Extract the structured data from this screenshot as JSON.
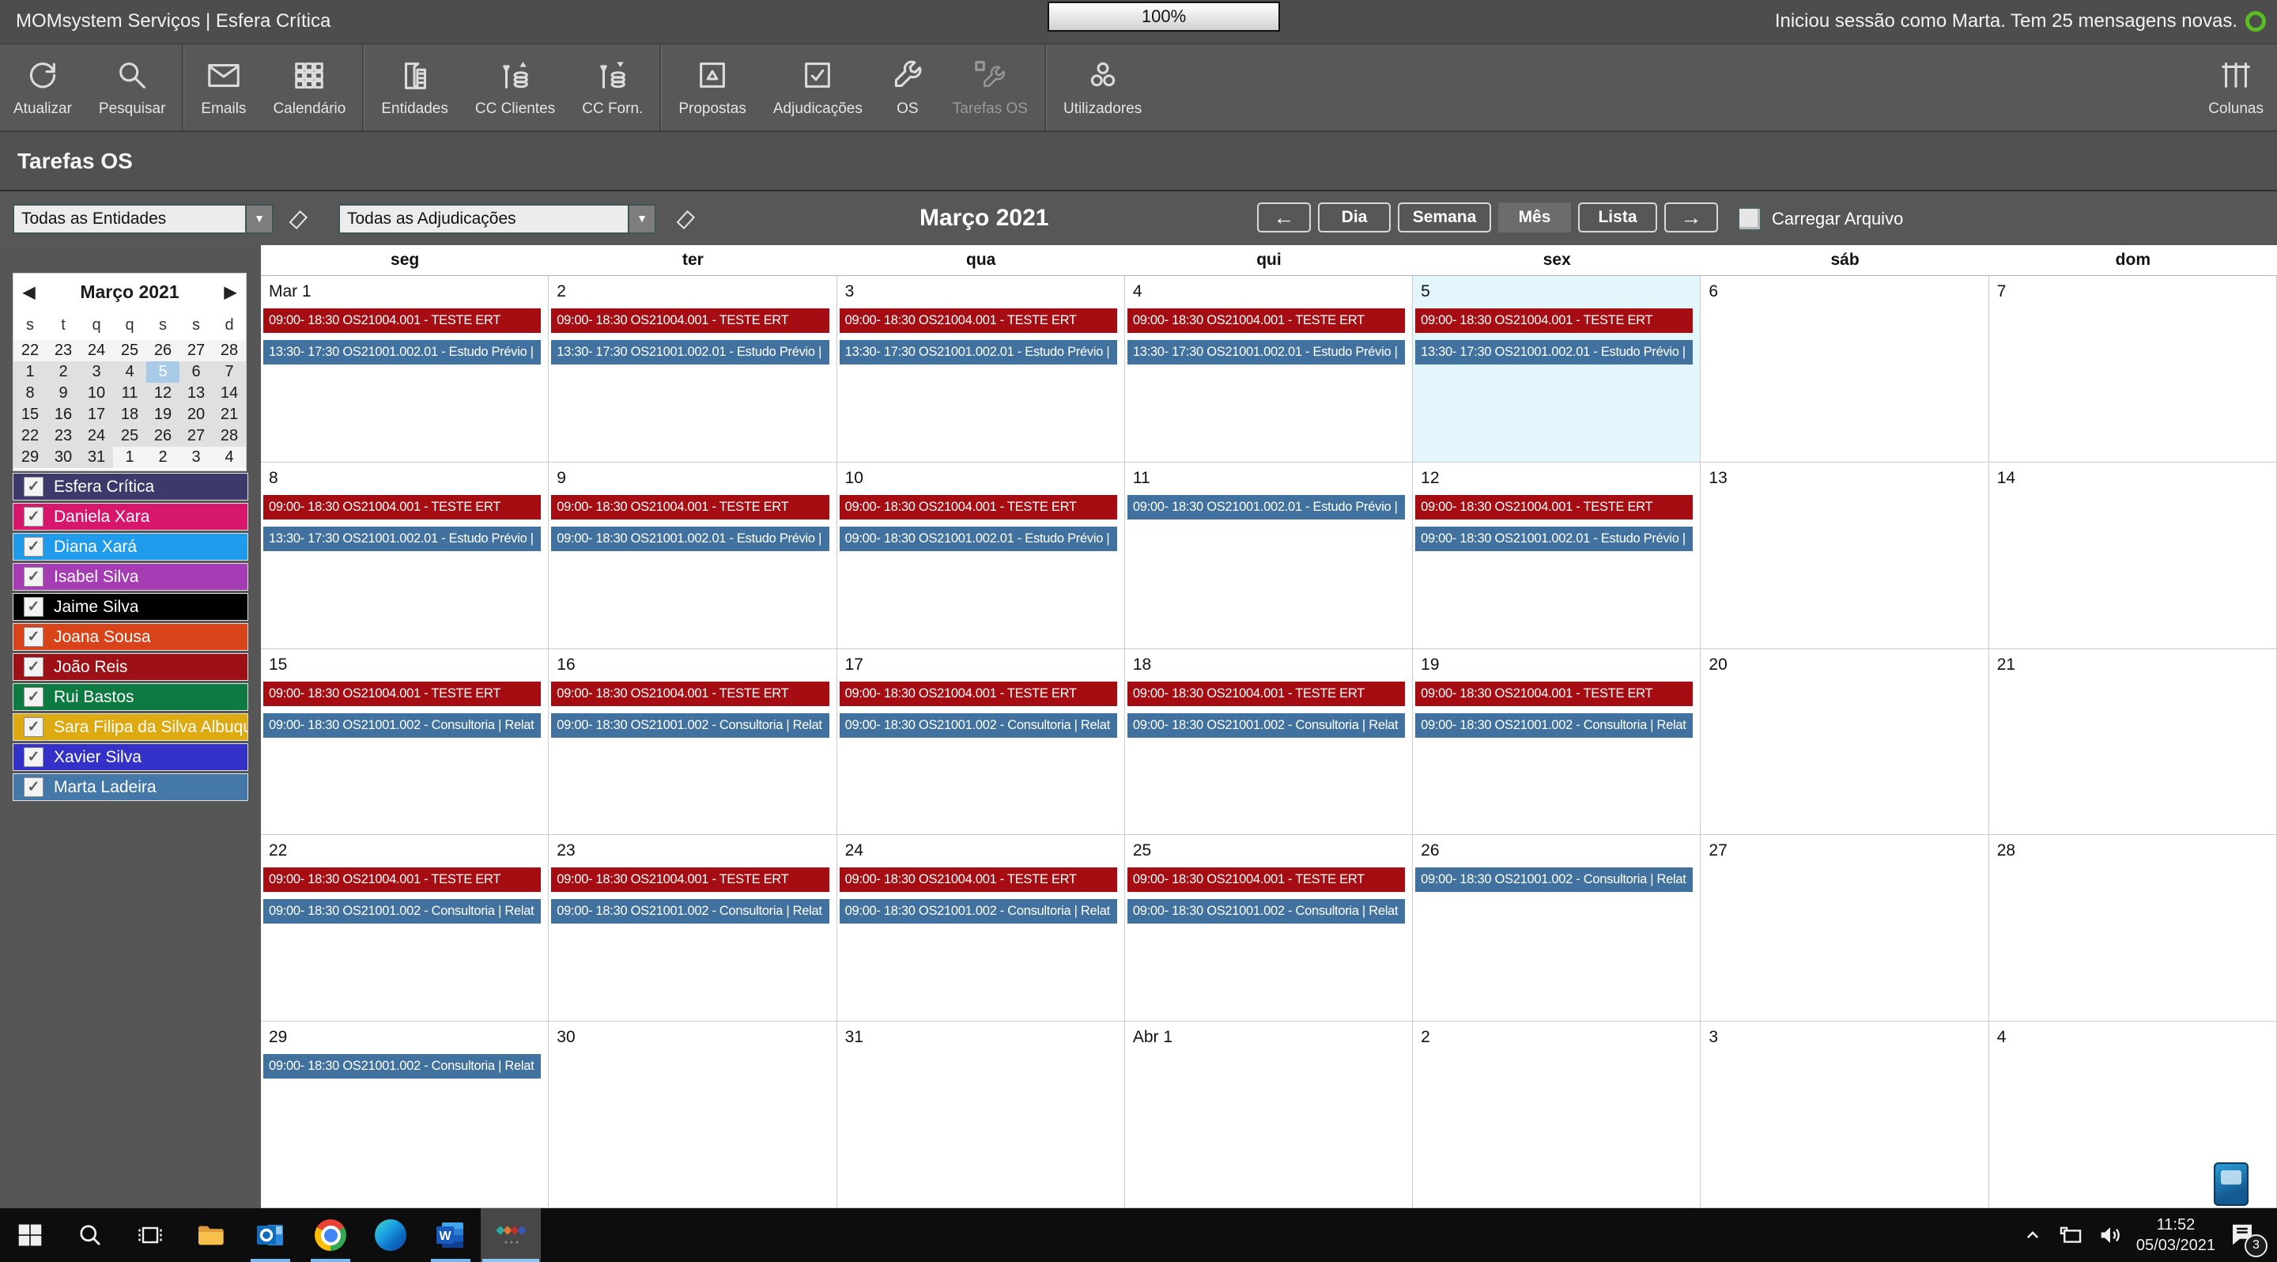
{
  "titlebar": {
    "app_title": "MOMsystem Serviços | Esfera Crítica",
    "zoom_level": "100%",
    "session_text": "Iniciou sessão como Marta.  Tem 25 mensagens novas."
  },
  "toolbar": {
    "items": [
      {
        "label": "Atualizar",
        "icon": "refresh-icon"
      },
      {
        "label": "Pesquisar",
        "icon": "search-icon"
      },
      {
        "sep": true
      },
      {
        "label": "Emails",
        "icon": "email-icon"
      },
      {
        "label": "Calendário",
        "icon": "calendar-grid-icon"
      },
      {
        "sep": true
      },
      {
        "label": "Entidades",
        "icon": "entities-icon"
      },
      {
        "label": "CC Clientes",
        "icon": "cc-clients-icon"
      },
      {
        "label": "CC Forn.",
        "icon": "cc-suppliers-icon"
      },
      {
        "sep": true
      },
      {
        "label": "Propostas",
        "icon": "proposals-icon"
      },
      {
        "label": "Adjudicações",
        "icon": "adjudications-icon"
      },
      {
        "label": "OS",
        "icon": "wrench-icon"
      },
      {
        "label": "Tarefas OS",
        "icon": "tasks-wrench-icon",
        "disabled": true
      },
      {
        "sep": true
      },
      {
        "label": "Utilizadores",
        "icon": "users-icon"
      }
    ],
    "right_item": {
      "label": "Colunas",
      "icon": "columns-icon"
    }
  },
  "page": {
    "title": "Tarefas OS"
  },
  "filters": {
    "entities_dropdown": "Todas as Entidades",
    "adjudications_dropdown": "Todas as Adjudicações",
    "month_title": "Março 2021",
    "nav": {
      "prev": "←",
      "day": "Dia",
      "week": "Semana",
      "month": "Mês",
      "list": "Lista",
      "next": "→",
      "active_view": "Mês"
    },
    "load_archive_label": "Carregar Arquivo",
    "load_archive_checked": false
  },
  "sidebar": {
    "mini_calendar": {
      "title": "Março 2021",
      "prev_arrow": "◀",
      "next_arrow": "▶",
      "dow": [
        "s",
        "t",
        "q",
        "q",
        "s",
        "s",
        "d"
      ],
      "selected_day": "5",
      "selected_color": "#a9cbe8",
      "rows": [
        [
          {
            "t": "22",
            "s": "out"
          },
          {
            "t": "23",
            "s": "out"
          },
          {
            "t": "24",
            "s": "out"
          },
          {
            "t": "25",
            "s": "out"
          },
          {
            "t": "26",
            "s": "out"
          },
          {
            "t": "27",
            "s": "out"
          },
          {
            "t": "28",
            "s": "out"
          }
        ],
        [
          {
            "t": "1",
            "s": "in"
          },
          {
            "t": "2",
            "s": "in"
          },
          {
            "t": "3",
            "s": "in"
          },
          {
            "t": "4",
            "s": "in"
          },
          {
            "t": "5",
            "s": "sel"
          },
          {
            "t": "6",
            "s": "in"
          },
          {
            "t": "7",
            "s": "in"
          }
        ],
        [
          {
            "t": "8",
            "s": "in"
          },
          {
            "t": "9",
            "s": "in"
          },
          {
            "t": "10",
            "s": "in"
          },
          {
            "t": "11",
            "s": "in"
          },
          {
            "t": "12",
            "s": "in"
          },
          {
            "t": "13",
            "s": "in"
          },
          {
            "t": "14",
            "s": "in"
          }
        ],
        [
          {
            "t": "15",
            "s": "in"
          },
          {
            "t": "16",
            "s": "in"
          },
          {
            "t": "17",
            "s": "in"
          },
          {
            "t": "18",
            "s": "in"
          },
          {
            "t": "19",
            "s": "in"
          },
          {
            "t": "20",
            "s": "in"
          },
          {
            "t": "21",
            "s": "in"
          }
        ],
        [
          {
            "t": "22",
            "s": "in"
          },
          {
            "t": "23",
            "s": "in"
          },
          {
            "t": "24",
            "s": "in"
          },
          {
            "t": "25",
            "s": "in"
          },
          {
            "t": "26",
            "s": "in"
          },
          {
            "t": "27",
            "s": "in"
          },
          {
            "t": "28",
            "s": "in"
          }
        ],
        [
          {
            "t": "29",
            "s": "in"
          },
          {
            "t": "30",
            "s": "in"
          },
          {
            "t": "31",
            "s": "in"
          },
          {
            "t": "1",
            "s": "out"
          },
          {
            "t": "2",
            "s": "out"
          },
          {
            "t": "3",
            "s": "out"
          },
          {
            "t": "4",
            "s": "out"
          }
        ]
      ]
    },
    "people": [
      {
        "name": "Esfera Crítica",
        "color": "#3b3a6a",
        "checked": true
      },
      {
        "name": "Daniela Xara",
        "color": "#d6176b",
        "checked": true
      },
      {
        "name": "Diana Xará",
        "color": "#209bec",
        "checked": true
      },
      {
        "name": "Isabel Silva",
        "color": "#a63cb3",
        "checked": true
      },
      {
        "name": "Jaime Silva",
        "color": "#000000",
        "checked": true
      },
      {
        "name": "Joana Sousa",
        "color": "#d8431a",
        "checked": true
      },
      {
        "name": "João Reis",
        "color": "#9d1016",
        "checked": true
      },
      {
        "name": "Rui Bastos",
        "color": "#0d7a41",
        "checked": true
      },
      {
        "name": "Sara Filipa da Silva Albuquer...",
        "color": "#deaa12",
        "checked": true
      },
      {
        "name": "Xavier Silva",
        "color": "#3431c9",
        "checked": true
      },
      {
        "name": "Marta Ladeira",
        "color": "#4478a8",
        "checked": true
      }
    ]
  },
  "calendar": {
    "day_headers": [
      "seg",
      "ter",
      "qua",
      "qui",
      "sex",
      "sáb",
      "dom"
    ],
    "event_colors": {
      "red": "#a50d12",
      "blue": "#41719e"
    },
    "today_cell_color": "#e2f6fb",
    "weeks": [
      {
        "days": [
          {
            "label": "Mar 1",
            "events": [
              {
                "c": "red",
                "t": "09:00- 18:30 OS21004.001 - TESTE ERT"
              },
              {
                "c": "blue",
                "t": "13:30- 17:30 OS21001.002.01 - Estudo Prévio |"
              }
            ]
          },
          {
            "label": "2",
            "events": [
              {
                "c": "red",
                "t": "09:00- 18:30 OS21004.001 - TESTE ERT"
              },
              {
                "c": "blue",
                "t": "13:30- 17:30 OS21001.002.01 - Estudo Prévio |"
              }
            ]
          },
          {
            "label": "3",
            "events": [
              {
                "c": "red",
                "t": "09:00- 18:30 OS21004.001 - TESTE ERT"
              },
              {
                "c": "blue",
                "t": "13:30- 17:30 OS21001.002.01 - Estudo Prévio |"
              }
            ]
          },
          {
            "label": "4",
            "events": [
              {
                "c": "red",
                "t": "09:00- 18:30 OS21004.001 - TESTE ERT"
              },
              {
                "c": "blue",
                "t": "13:30- 17:30 OS21001.002.01 - Estudo Prévio |"
              }
            ]
          },
          {
            "label": "5",
            "today": true,
            "events": [
              {
                "c": "red",
                "t": "09:00- 18:30 OS21004.001 - TESTE ERT"
              },
              {
                "c": "blue",
                "t": "13:30- 17:30 OS21001.002.01 - Estudo Prévio |"
              }
            ]
          },
          {
            "label": "6",
            "events": []
          },
          {
            "label": "7",
            "events": []
          }
        ]
      },
      {
        "days": [
          {
            "label": "8",
            "events": [
              {
                "c": "red",
                "t": "09:00- 18:30 OS21004.001 - TESTE ERT"
              },
              {
                "c": "blue",
                "t": "13:30- 17:30 OS21001.002.01 - Estudo Prévio |"
              }
            ]
          },
          {
            "label": "9",
            "events": [
              {
                "c": "red",
                "t": "09:00- 18:30 OS21004.001 - TESTE ERT"
              },
              {
                "c": "blue",
                "t": "09:00- 18:30 OS21001.002.01 - Estudo Prévio |"
              }
            ]
          },
          {
            "label": "10",
            "events": [
              {
                "c": "red",
                "t": "09:00- 18:30 OS21004.001 - TESTE ERT"
              },
              {
                "c": "blue",
                "t": "09:00- 18:30 OS21001.002.01 - Estudo Prévio |"
              }
            ]
          },
          {
            "label": "11",
            "events": [
              {
                "c": "blue",
                "t": "09:00- 18:30 OS21001.002.01 - Estudo Prévio |"
              }
            ]
          },
          {
            "label": "12",
            "events": [
              {
                "c": "red",
                "t": "09:00- 18:30 OS21004.001 - TESTE ERT"
              },
              {
                "c": "blue",
                "t": "09:00- 18:30 OS21001.002.01 - Estudo Prévio |"
              }
            ]
          },
          {
            "label": "13",
            "events": []
          },
          {
            "label": "14",
            "events": []
          }
        ]
      },
      {
        "days": [
          {
            "label": "15",
            "events": [
              {
                "c": "red",
                "t": "09:00- 18:30 OS21004.001 - TESTE ERT"
              },
              {
                "c": "blue",
                "t": "09:00- 18:30 OS21001.002 - Consultoria | Relat"
              }
            ]
          },
          {
            "label": "16",
            "events": [
              {
                "c": "red",
                "t": "09:00- 18:30 OS21004.001 - TESTE ERT"
              },
              {
                "c": "blue",
                "t": "09:00- 18:30 OS21001.002 - Consultoria | Relat"
              }
            ]
          },
          {
            "label": "17",
            "events": [
              {
                "c": "red",
                "t": "09:00- 18:30 OS21004.001 - TESTE ERT"
              },
              {
                "c": "blue",
                "t": "09:00- 18:30 OS21001.002 - Consultoria | Relat"
              }
            ]
          },
          {
            "label": "18",
            "events": [
              {
                "c": "red",
                "t": "09:00- 18:30 OS21004.001 - TESTE ERT"
              },
              {
                "c": "blue",
                "t": "09:00- 18:30 OS21001.002 - Consultoria | Relat"
              }
            ]
          },
          {
            "label": "19",
            "events": [
              {
                "c": "red",
                "t": "09:00- 18:30 OS21004.001 - TESTE ERT"
              },
              {
                "c": "blue",
                "t": "09:00- 18:30 OS21001.002 - Consultoria | Relat"
              }
            ]
          },
          {
            "label": "20",
            "events": []
          },
          {
            "label": "21",
            "events": []
          }
        ]
      },
      {
        "days": [
          {
            "label": "22",
            "events": [
              {
                "c": "red",
                "t": "09:00- 18:30 OS21004.001 - TESTE ERT"
              },
              {
                "c": "blue",
                "t": "09:00- 18:30 OS21001.002 - Consultoria | Relat"
              }
            ]
          },
          {
            "label": "23",
            "events": [
              {
                "c": "red",
                "t": "09:00- 18:30 OS21004.001 - TESTE ERT"
              },
              {
                "c": "blue",
                "t": "09:00- 18:30 OS21001.002 - Consultoria | Relat"
              }
            ]
          },
          {
            "label": "24",
            "events": [
              {
                "c": "red",
                "t": "09:00- 18:30 OS21004.001 - TESTE ERT"
              },
              {
                "c": "blue",
                "t": "09:00- 18:30 OS21001.002 - Consultoria | Relat"
              }
            ]
          },
          {
            "label": "25",
            "events": [
              {
                "c": "red",
                "t": "09:00- 18:30 OS21004.001 - TESTE ERT"
              },
              {
                "c": "blue",
                "t": "09:00- 18:30 OS21001.002 - Consultoria | Relat"
              }
            ]
          },
          {
            "label": "26",
            "events": [
              {
                "c": "blue",
                "t": "09:00- 18:30 OS21001.002 - Consultoria | Relat"
              }
            ]
          },
          {
            "label": "27",
            "events": []
          },
          {
            "label": "28",
            "events": []
          }
        ]
      },
      {
        "days": [
          {
            "label": "29",
            "events": [
              {
                "c": "blue",
                "t": "09:00- 18:30 OS21001.002 - Consultoria | Relat"
              }
            ]
          },
          {
            "label": "30",
            "events": []
          },
          {
            "label": "31",
            "events": []
          },
          {
            "label": "Abr 1",
            "events": []
          },
          {
            "label": "2",
            "events": []
          },
          {
            "label": "3",
            "events": []
          },
          {
            "label": "4",
            "events": []
          }
        ]
      }
    ]
  },
  "taskbar": {
    "apps": [
      {
        "name": "start",
        "running": false
      },
      {
        "name": "search",
        "running": false
      },
      {
        "name": "task-view",
        "running": false
      },
      {
        "name": "file-explorer",
        "running": false
      },
      {
        "name": "outlook",
        "running": true
      },
      {
        "name": "chrome",
        "running": true
      },
      {
        "name": "edge",
        "running": false
      },
      {
        "name": "word",
        "running": true
      },
      {
        "name": "momsystem",
        "running": true,
        "active": true
      }
    ],
    "tray": {
      "time": "11:52",
      "date": "05/03/2021",
      "notification_count": "3"
    }
  }
}
